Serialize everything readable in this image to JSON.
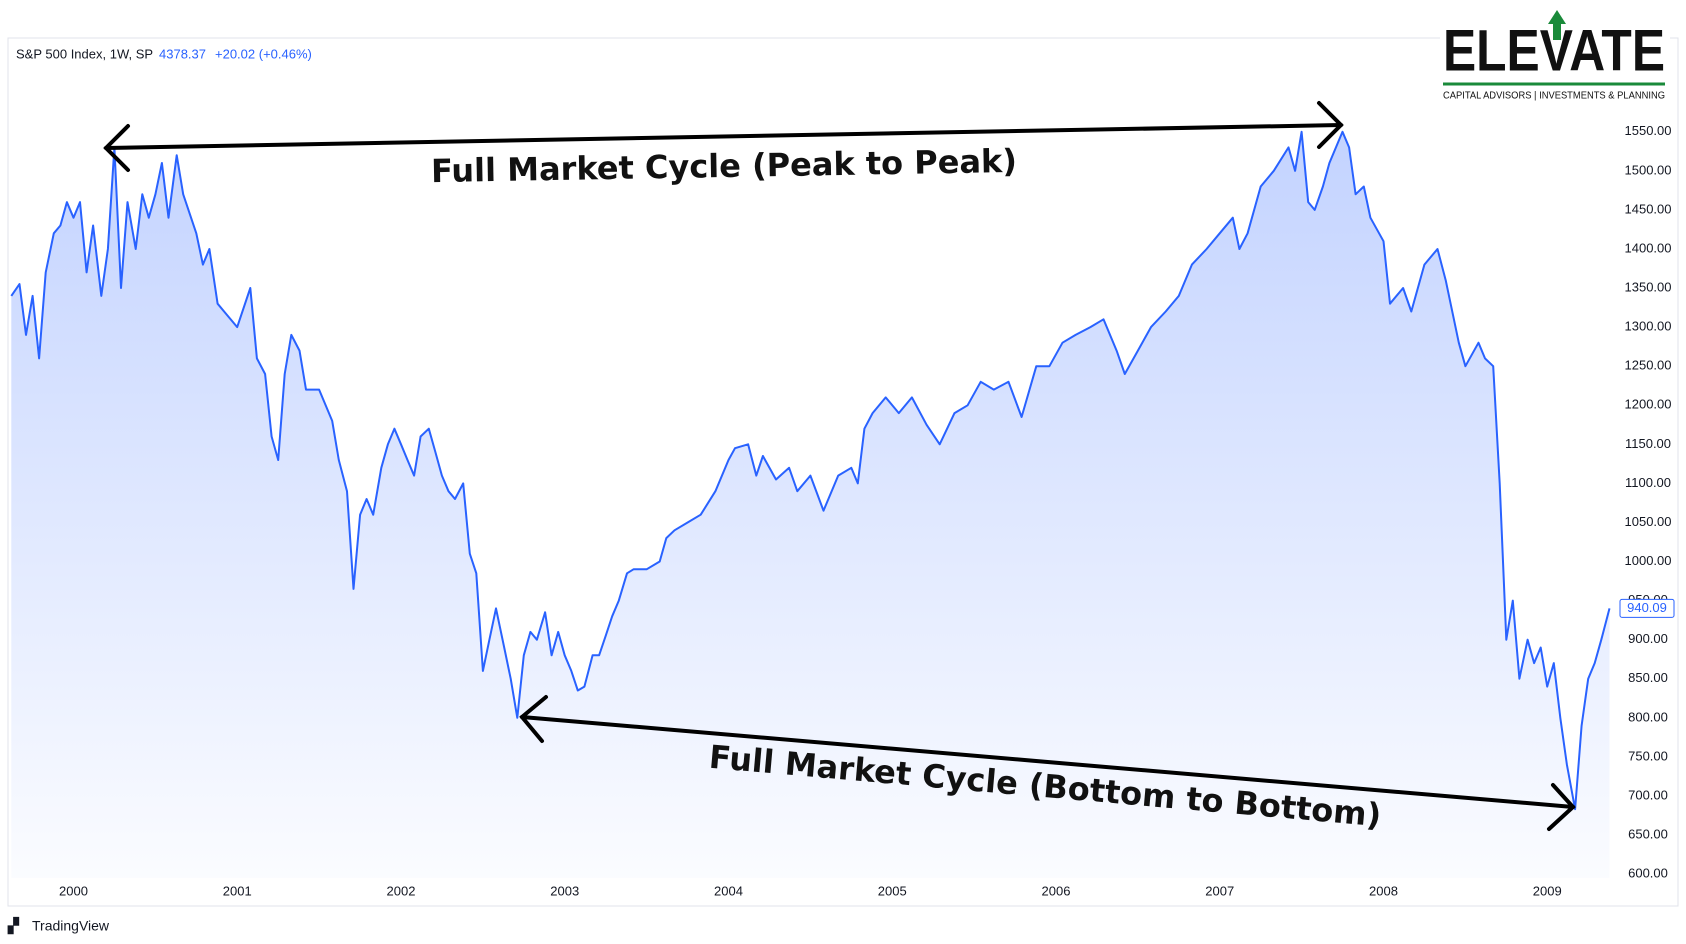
{
  "chart_data": {
    "type": "line",
    "title": "S&P 500 Index, 1W, SP",
    "quote": "4378.37",
    "change": "+20.02 (+0.46%)",
    "annotations": [
      "Full Market Cycle (Peak to Peak)",
      "Full Market Cycle (Bottom to Bottom)"
    ],
    "logo": {
      "name": "ELEVATE",
      "tagline": "CAPITAL ADVISORS | INVESTMENTS & PLANNING"
    },
    "footer": "TradingView",
    "color": "#2962ff",
    "grid": false,
    "last_price": {
      "value": 940.09,
      "label": "940.09"
    },
    "xlim": [
      1999.6,
      2009.42
    ],
    "xticks": [
      2000,
      2001,
      2002,
      2003,
      2004,
      2005,
      2006,
      2007,
      2008,
      2009
    ],
    "ylim": [
      595,
      1670
    ],
    "yticks": [
      {
        "value": 600,
        "label": "600.00"
      },
      {
        "value": 650,
        "label": "650.00"
      },
      {
        "value": 700,
        "label": "700.00"
      },
      {
        "value": 750,
        "label": "750.00"
      },
      {
        "value": 800,
        "label": "800.00"
      },
      {
        "value": 850,
        "label": "850.00"
      },
      {
        "value": 900,
        "label": "900.00"
      },
      {
        "value": 950,
        "label": "950.00"
      },
      {
        "value": 1000,
        "label": "1000.00"
      },
      {
        "value": 1050,
        "label": "1050.00"
      },
      {
        "value": 1100,
        "label": "1100.00"
      },
      {
        "value": 1150,
        "label": "1150.00"
      },
      {
        "value": 1200,
        "label": "1200.00"
      },
      {
        "value": 1250,
        "label": "1250.00"
      },
      {
        "value": 1300,
        "label": "1300.00"
      },
      {
        "value": 1350,
        "label": "1350.00"
      },
      {
        "value": 1400,
        "label": "1400.00"
      },
      {
        "value": 1450,
        "label": "1450.00"
      },
      {
        "value": 1500,
        "label": "1500.00"
      },
      {
        "value": 1550,
        "label": "1550.00"
      }
    ],
    "x": [
      1999.62,
      1999.67,
      1999.71,
      1999.75,
      1999.79,
      1999.83,
      1999.88,
      1999.92,
      1999.96,
      2000.0,
      2000.04,
      2000.08,
      2000.12,
      2000.17,
      2000.21,
      2000.25,
      2000.29,
      2000.33,
      2000.38,
      2000.42,
      2000.46,
      2000.5,
      2000.54,
      2000.58,
      2000.63,
      2000.67,
      2000.75,
      2000.79,
      2000.83,
      2000.88,
      2000.92,
      2001.0,
      2001.08,
      2001.12,
      2001.17,
      2001.21,
      2001.25,
      2001.29,
      2001.33,
      2001.38,
      2001.42,
      2001.5,
      2001.58,
      2001.62,
      2001.67,
      2001.71,
      2001.75,
      2001.79,
      2001.83,
      2001.88,
      2001.92,
      2001.96,
      2002.0,
      2002.04,
      2002.08,
      2002.12,
      2002.17,
      2002.21,
      2002.25,
      2002.29,
      2002.33,
      2002.38,
      2002.42,
      2002.46,
      2002.5,
      2002.54,
      2002.58,
      2002.63,
      2002.67,
      2002.71,
      2002.75,
      2002.79,
      2002.83,
      2002.88,
      2002.92,
      2002.96,
      2003.0,
      2003.04,
      2003.08,
      2003.12,
      2003.17,
      2003.21,
      2003.25,
      2003.29,
      2003.33,
      2003.38,
      2003.42,
      2003.5,
      2003.58,
      2003.62,
      2003.67,
      2003.75,
      2003.83,
      2003.92,
      2004.0,
      2004.04,
      2004.12,
      2004.17,
      2004.21,
      2004.29,
      2004.37,
      2004.42,
      2004.5,
      2004.58,
      2004.67,
      2004.75,
      2004.79,
      2004.83,
      2004.88,
      2004.96,
      2005.04,
      2005.12,
      2005.21,
      2005.29,
      2005.38,
      2005.46,
      2005.54,
      2005.62,
      2005.71,
      2005.79,
      2005.88,
      2005.96,
      2006.04,
      2006.12,
      2006.21,
      2006.29,
      2006.37,
      2006.42,
      2006.5,
      2006.58,
      2006.67,
      2006.75,
      2006.83,
      2006.92,
      2007.0,
      2007.08,
      2007.12,
      2007.17,
      2007.25,
      2007.33,
      2007.42,
      2007.46,
      2007.5,
      2007.54,
      2007.58,
      2007.63,
      2007.67,
      2007.75,
      2007.79,
      2007.83,
      2007.88,
      2007.92,
      2008.0,
      2008.04,
      2008.12,
      2008.17,
      2008.25,
      2008.33,
      2008.38,
      2008.46,
      2008.5,
      2008.58,
      2008.62,
      2008.67,
      2008.71,
      2008.75,
      2008.79,
      2008.83,
      2008.88,
      2008.92,
      2008.96,
      2009.0,
      2009.04,
      2009.08,
      2009.12,
      2009.17,
      2009.21,
      2009.25,
      2009.29,
      2009.33,
      2009.38
    ],
    "values": [
      1340,
      1355,
      1290,
      1340,
      1260,
      1370,
      1420,
      1430,
      1460,
      1440,
      1460,
      1370,
      1430,
      1340,
      1400,
      1530,
      1350,
      1460,
      1400,
      1470,
      1440,
      1470,
      1510,
      1440,
      1520,
      1470,
      1420,
      1380,
      1400,
      1330,
      1320,
      1300,
      1350,
      1260,
      1240,
      1160,
      1130,
      1240,
      1290,
      1270,
      1220,
      1220,
      1180,
      1130,
      1090,
      965,
      1060,
      1080,
      1060,
      1120,
      1150,
      1170,
      1150,
      1130,
      1110,
      1160,
      1170,
      1140,
      1110,
      1090,
      1080,
      1100,
      1010,
      985,
      860,
      900,
      940,
      890,
      850,
      800,
      880,
      910,
      900,
      935,
      880,
      910,
      880,
      860,
      835,
      840,
      880,
      880,
      905,
      930,
      950,
      985,
      990,
      990,
      1000,
      1030,
      1040,
      1050,
      1060,
      1090,
      1130,
      1145,
      1150,
      1110,
      1135,
      1105,
      1120,
      1090,
      1110,
      1065,
      1110,
      1120,
      1100,
      1170,
      1190,
      1210,
      1190,
      1210,
      1175,
      1150,
      1190,
      1200,
      1230,
      1220,
      1230,
      1185,
      1250,
      1250,
      1280,
      1290,
      1300,
      1310,
      1270,
      1240,
      1270,
      1300,
      1320,
      1340,
      1380,
      1400,
      1420,
      1440,
      1400,
      1420,
      1480,
      1500,
      1530,
      1500,
      1550,
      1460,
      1450,
      1480,
      1510,
      1550,
      1530,
      1470,
      1480,
      1440,
      1410,
      1330,
      1350,
      1320,
      1380,
      1400,
      1360,
      1280,
      1250,
      1280,
      1260,
      1250,
      1100,
      900,
      950,
      850,
      900,
      870,
      890,
      840,
      870,
      800,
      740,
      683,
      790,
      850,
      870,
      900,
      940
    ]
  }
}
